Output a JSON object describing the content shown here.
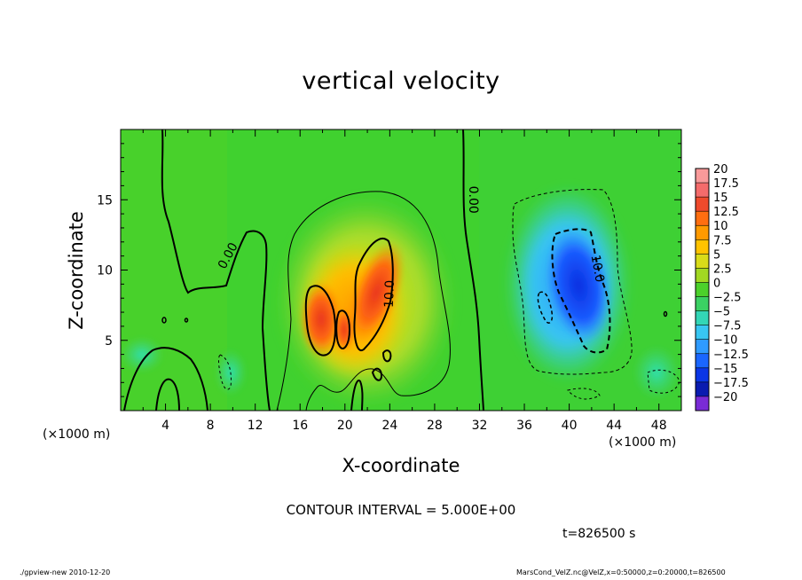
{
  "chart_data": {
    "type": "heatmap",
    "title": "vertical velocity",
    "xlabel": "X-coordinate",
    "ylabel": "Z-coordinate",
    "x_unit_label": "(×1000 m)",
    "y_unit_label": "(×1000 m)",
    "xlim": [
      0,
      50
    ],
    "ylim": [
      0,
      20
    ],
    "x_ticks": [
      4,
      8,
      12,
      16,
      20,
      24,
      28,
      32,
      36,
      40,
      44,
      48
    ],
    "y_ticks": [
      5,
      10,
      15
    ],
    "colorbar": {
      "min": -20,
      "max": 20,
      "levels": [
        20,
        17.5,
        15,
        12.5,
        10,
        7.5,
        5,
        2.5,
        0,
        -2.5,
        -5,
        -7.5,
        -10,
        -12.5,
        -15,
        -17.5,
        -20
      ],
      "labels": [
        "20",
        "17.5",
        "15",
        "12.5",
        "10",
        "7.5",
        "5",
        "2.5",
        "0",
        "−2.5",
        "−5",
        "−7.5",
        "−10",
        "−12.5",
        "−15",
        "−17.5",
        "−20"
      ]
    },
    "contour_labels": [
      {
        "text": "0.00",
        "x": 9.6,
        "z": 11.0,
        "rotate": -62
      },
      {
        "text": "0.00",
        "x": 31.4,
        "z": 15.0,
        "rotate": 90
      },
      {
        "text": "10.0",
        "x": 24.0,
        "z": 8.3,
        "rotate": -88
      },
      {
        "text": "10.0",
        "x": 42.5,
        "z": 10.1,
        "rotate": 80
      }
    ],
    "features": [
      {
        "name": "updraft-core-left",
        "x": 18.0,
        "z": 6.8,
        "value": 13
      },
      {
        "name": "updraft-core-right",
        "x": 22.7,
        "z": 8.0,
        "value": 15
      },
      {
        "name": "downdraft-core",
        "x": 41.0,
        "z": 8.2,
        "value": -14
      }
    ],
    "contour_interval": "CONTOUR INTERVAL = 5.000E+00",
    "time_label": "t=826500 s",
    "grid": false
  },
  "footer": {
    "left": "./gpview-new  2010-12-20",
    "right": "MarsCond_VelZ.nc@VelZ,x=0:50000,z=0:20000,t=826500"
  }
}
